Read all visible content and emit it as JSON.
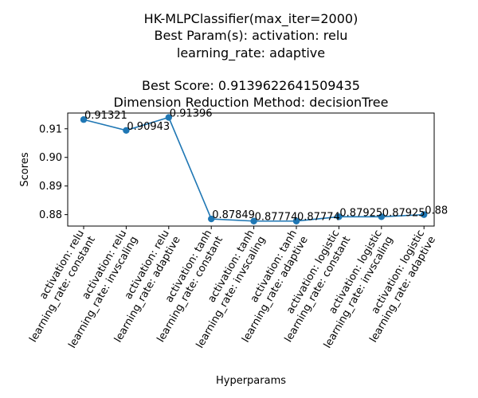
{
  "chart_data": {
    "type": "line",
    "title_lines": [
      "HK-MLPClassifier(max_iter=2000)",
      "Best Param(s): activation: relu",
      "learning_rate: adaptive",
      "",
      "Best Score: 0.9139622641509435",
      "Dimension Reduction Method: decisionTree"
    ],
    "xlabel": "Hyperparams",
    "ylabel": "Scores",
    "ylim": [
      0.876,
      0.9155
    ],
    "yticks": [
      "0.88",
      "0.89",
      "0.90",
      "0.91"
    ],
    "grid": false,
    "categories": [
      [
        "activation: relu",
        "learning_rate: constant"
      ],
      [
        "activation: relu",
        "learning_rate: invscaling"
      ],
      [
        "activation: relu",
        "learning_rate: adaptive"
      ],
      [
        "activation: tanh",
        "learning_rate: constant"
      ],
      [
        "activation: tanh",
        "learning_rate: invscaling"
      ],
      [
        "activation: tanh",
        "learning_rate: adaptive"
      ],
      [
        "activation: logistic",
        "learning_rate: constant"
      ],
      [
        "activation: logistic",
        "learning_rate: invscaling"
      ],
      [
        "activation: logistic",
        "learning_rate: adaptive"
      ]
    ],
    "values": [
      0.91321,
      0.90943,
      0.91396,
      0.87849,
      0.87774,
      0.87774,
      0.87925,
      0.87925,
      0.88
    ],
    "data_labels": [
      "0.91321",
      "0.90943",
      "0.91396",
      "0.87849",
      "0.87774",
      "0.87774",
      "0.87925",
      "0.87925",
      "0.88"
    ],
    "line_color": "#1f77b4"
  }
}
